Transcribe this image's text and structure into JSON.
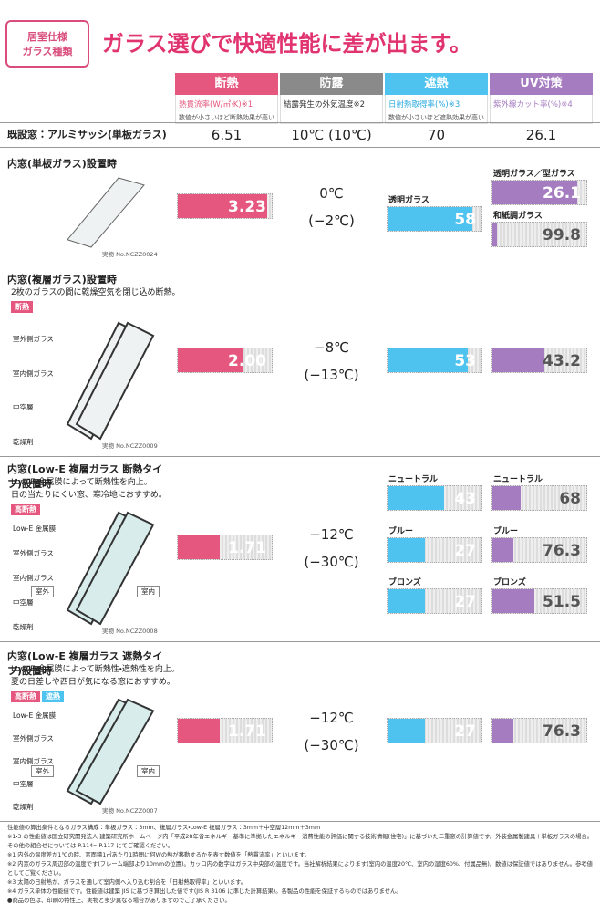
{
  "header": {
    "badge": [
      "居室仕様",
      "ガラス種類"
    ],
    "title": "ガラス選びで快適性能に差が出ます。"
  },
  "columns": [
    {
      "name": "断熱",
      "subtitle": "熱貫流率(W/㎡·K)※1",
      "note": "数値が小さいほど断熱効果が高い"
    },
    {
      "name": "防露",
      "subtitle": "結露発生の外気温度※2",
      "note": ""
    },
    {
      "name": "遮熱",
      "subtitle": "日射熱取得率(%)※3",
      "note": "数値が小さいほど遮熱効果が高い"
    },
    {
      "name": "UV対策",
      "subtitle": "紫外線カット率(%)※4",
      "note": ""
    }
  ],
  "baseline": {
    "label": "既設窓：アルミサッシ(単板ガラス)",
    "values": [
      "6.51",
      "10℃ (10℃)",
      "70",
      "26.1"
    ]
  },
  "rows": [
    {
      "title": "内窓(単板ガラス)設置時",
      "desc": [],
      "tags": [],
      "glass_labels": [],
      "rooms": [],
      "code": "実物 No.NCZZ0024",
      "thermal": "3.23",
      "condensation": [
        "0℃",
        "(−2℃)"
      ],
      "shading": [
        {
          "label": "透明ガラス",
          "value": "58"
        }
      ],
      "uv": [
        {
          "label": "透明ガラス／型ガラス",
          "value": "26.1"
        },
        {
          "label": "和紙調ガラス",
          "value": "99.8"
        }
      ]
    },
    {
      "title": "内窓(複層ガラス)設置時",
      "desc": [
        "2枚のガラスの間に乾燥空気を閉じ込め断熱。"
      ],
      "tags": [
        "断熱"
      ],
      "glass_labels": [
        "室外側ガラス",
        "室内側ガラス",
        "中空層",
        "乾燥剤"
      ],
      "rooms": [],
      "code": "実物 No.NCZZ0009",
      "thermal": "2.00",
      "condensation": [
        "−8℃",
        "(−13℃)"
      ],
      "shading": [
        {
          "label": "",
          "value": "53"
        }
      ],
      "uv": [
        {
          "label": "",
          "value": "43.2"
        }
      ]
    },
    {
      "title": "内窓(Low-E 複層ガラス 断熱タイプ)設置時",
      "desc": [
        "Low-E 金属膜によって断熱性を向上。",
        "日の当たりにくい窓、寒冷地におすすめ。"
      ],
      "tags": [
        "高断熱"
      ],
      "glass_labels": [
        "Low-E 金属膜",
        "室外側ガラス",
        "室内側ガラス",
        "中空層",
        "乾燥剤"
      ],
      "rooms": [
        "室外",
        "室内"
      ],
      "code": "実物 No.NCZZ0008",
      "thermal": "1.71",
      "condensation": [
        "−12℃",
        "(−30℃)"
      ],
      "shading": [
        {
          "label": "ニュートラル",
          "value": "43"
        },
        {
          "label": "ブルー",
          "value": "27"
        },
        {
          "label": "ブロンズ",
          "value": "27"
        }
      ],
      "uv": [
        {
          "label": "ニュートラル",
          "value": "68"
        },
        {
          "label": "ブルー",
          "value": "76.3"
        },
        {
          "label": "ブロンズ",
          "value": "51.5"
        }
      ]
    },
    {
      "title": "内窓(Low-E 複層ガラス 遮熱タイプ)設置時",
      "desc": [
        "Low-E 金属膜によって断熱性・遮熱性を向上。",
        "夏の日差しや西日が気になる窓におすすめ。"
      ],
      "tags": [
        "高断熱",
        "遮熱"
      ],
      "glass_labels": [
        "Low-E 金属膜",
        "室外側ガラス",
        "室内側ガラス",
        "中空層",
        "乾燥剤"
      ],
      "rooms": [
        "室外",
        "室内"
      ],
      "code": "実物 No.NCZZ0007",
      "thermal": "1.71",
      "condensation": [
        "−12℃",
        "(−30℃)"
      ],
      "shading": [
        {
          "label": "",
          "value": "27"
        }
      ],
      "uv": [
        {
          "label": "",
          "value": "76.3"
        }
      ]
    }
  ],
  "footnotes": [
    "性能値の算出条件となるガラス構成：単板ガラス：3mm、複層ガラス・Low-E 複層ガラス：3mm＋中空層12mm＋3mm",
    "※1・3 の性能値は国立研究開発法人 建築研究所ホームページ内「平成28年省エネルギー基準に準拠したエネルギー消費性能の評価に関する技術情報(住宅)」に基づいた二重窓の計算値です。外装金属製建具＋単板ガラスの場合。その他の組合せについては P.114〜P.117 にてご確認ください。",
    "※1 内外の温度差が1℃の時、窓面積1㎡あたり1時間に何Wの熱が移動するかを表す数値を「熱貫流率」といいます。",
    "※2 内窓のガラス周辺部の温度です(フレーム端部より10mmの位置)。カッコ内の数字はガラス中央部の温度です。当社解析結果によります(室内の温度20℃、室内の湿度60%、付属品無)。数値は保証値ではありません。参考値としてご覧ください。",
    "※3 太陽の日射熱が、ガラスを通して室内側へ入り込む割合を「日射熱取得率」といいます。",
    "※4 ガラス単体の性能値です。性能値は建築 JIS に基づき算出した値です(JIS R 3106 に準じた計算結果)。各製品の性能を保証するものではありません。",
    "●商品の色は、印刷の特性上、実物と多少異なる場合がありますのでご了承ください。"
  ]
}
